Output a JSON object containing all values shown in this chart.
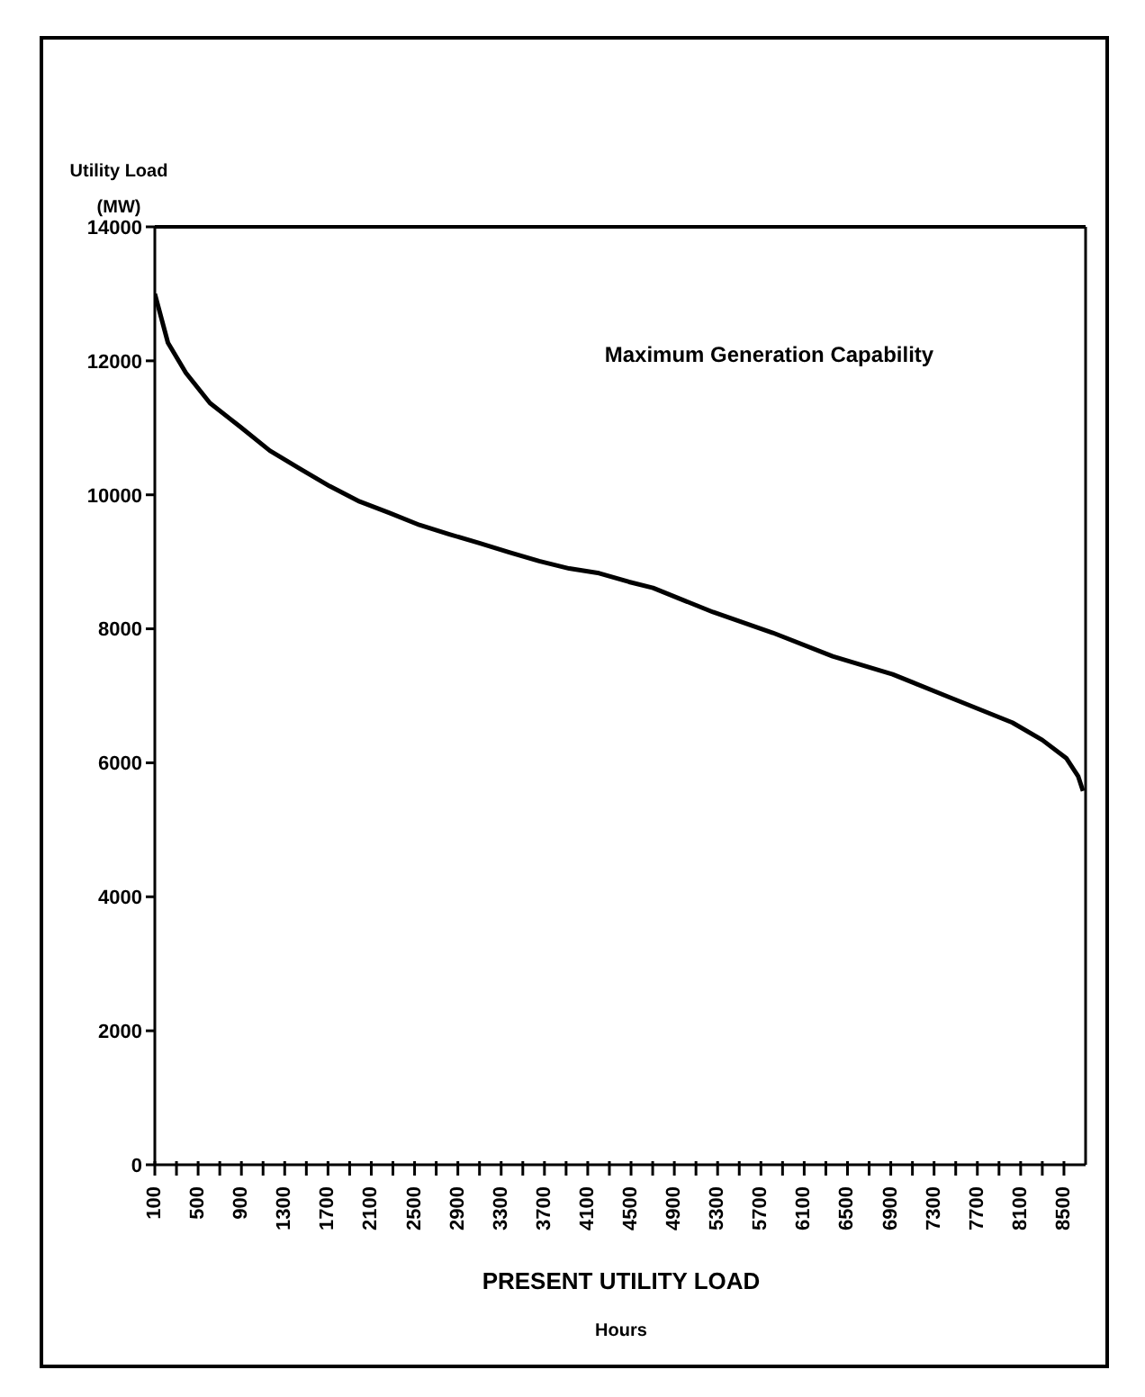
{
  "chart_data": {
    "type": "line",
    "ylabel": "Utility Load (MW)",
    "xlabel": "PRESENT UTILITY LOAD",
    "annotations": [
      "Hours"
    ],
    "x": [
      100,
      221,
      387,
      609,
      885,
      1162,
      1439,
      1715,
      1992,
      2269,
      2545,
      2822,
      3099,
      3375,
      3652,
      3929,
      4205,
      4482,
      4703,
      5257,
      5810,
      6363,
      6917,
      7470,
      8023,
      8300,
      8521,
      8631,
      8676
    ],
    "series": [
      {
        "color": "#000000",
        "values": [
          13000,
          12270,
          11820,
          11370,
          11020,
          10660,
          10390,
          10130,
          9900,
          9730,
          9550,
          9410,
          9280,
          9140,
          9010,
          8900,
          8830,
          8700,
          8610,
          8250,
          7940,
          7590,
          7320,
          6960,
          6600,
          6340,
          6070,
          5800,
          5580
        ]
      }
    ],
    "xlim": [
      100,
      8700
    ],
    "xticks": [
      100,
      {
        "value": 300,
        "label": null
      },
      500,
      {
        "value": 700,
        "label": null
      },
      900,
      {
        "value": 1100,
        "label": null
      },
      1300,
      {
        "value": 1500,
        "label": null
      },
      1700,
      {
        "value": 1900,
        "label": null
      },
      2100,
      {
        "value": 2300,
        "label": null
      },
      2500,
      {
        "value": 2700,
        "label": null
      },
      2900,
      {
        "value": 3100,
        "label": null
      },
      3300,
      {
        "value": 3500,
        "label": null
      },
      3700,
      {
        "value": 3900,
        "label": null
      },
      4100,
      {
        "value": 4300,
        "label": null
      },
      4500,
      {
        "value": 4700,
        "label": null
      },
      4900,
      {
        "value": 5100,
        "label": null
      },
      5300,
      {
        "value": 5500,
        "label": null
      },
      5700,
      {
        "value": 5900,
        "label": null
      },
      6100,
      {
        "value": 6300,
        "label": null
      },
      6500,
      {
        "value": 6700,
        "label": null
      },
      6900,
      {
        "value": 7100,
        "label": null
      },
      7300,
      {
        "value": 7500,
        "label": null
      },
      7700,
      {
        "value": 7900,
        "label": null
      },
      8100,
      {
        "value": 8300,
        "label": null
      },
      8500
    ],
    "ylim": [
      0,
      14000
    ],
    "yticks": [
      0,
      2000,
      4000,
      6000,
      8000,
      10000,
      12000,
      14000
    ],
    "ref_lines": [
      {
        "axis": "y",
        "value": 14000,
        "label": "Maximum Generation Capability",
        "color": "#000000"
      }
    ],
    "grid": false,
    "legend": false,
    "marker": "none",
    "line_style": "solid"
  }
}
